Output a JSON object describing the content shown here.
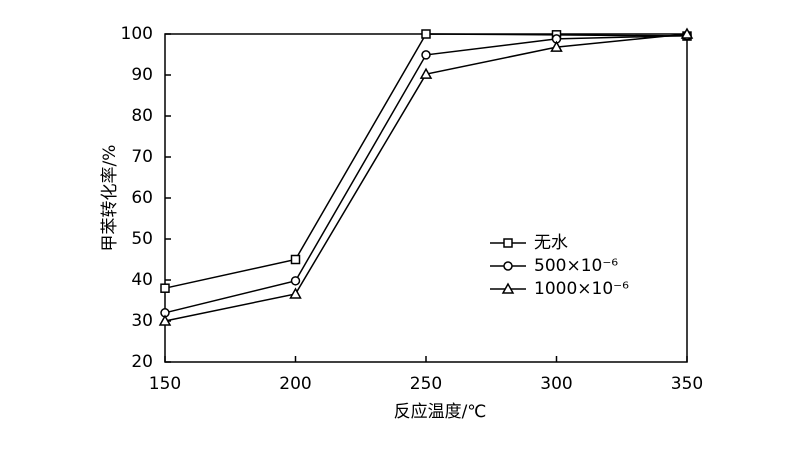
{
  "chart_data": {
    "type": "line",
    "x_label": "反应温度/℃",
    "y_label": "甲苯转化率/%",
    "x": [
      150,
      200,
      250,
      300,
      350
    ],
    "series": [
      {
        "name": "无水",
        "color": "#000000",
        "marker": "square",
        "values": [
          38,
          45,
          100,
          99.8,
          99.5
        ]
      },
      {
        "name": "500×10⁻⁶",
        "color": "#000000",
        "marker": "circle",
        "values": [
          32,
          39.8,
          94.9,
          98.8,
          99.6
        ]
      },
      {
        "name": "1000×10⁻⁶",
        "color": "#000000",
        "marker": "triangle",
        "values": [
          30,
          36.6,
          90.2,
          96.8,
          100
        ]
      }
    ],
    "xlim": [
      150,
      350
    ],
    "xticks": [
      150,
      200,
      250,
      300,
      350
    ],
    "ylim": [
      20,
      100
    ],
    "yticks": [
      20,
      30,
      40,
      50,
      60,
      70,
      80,
      90,
      100
    ],
    "grid": false
  }
}
